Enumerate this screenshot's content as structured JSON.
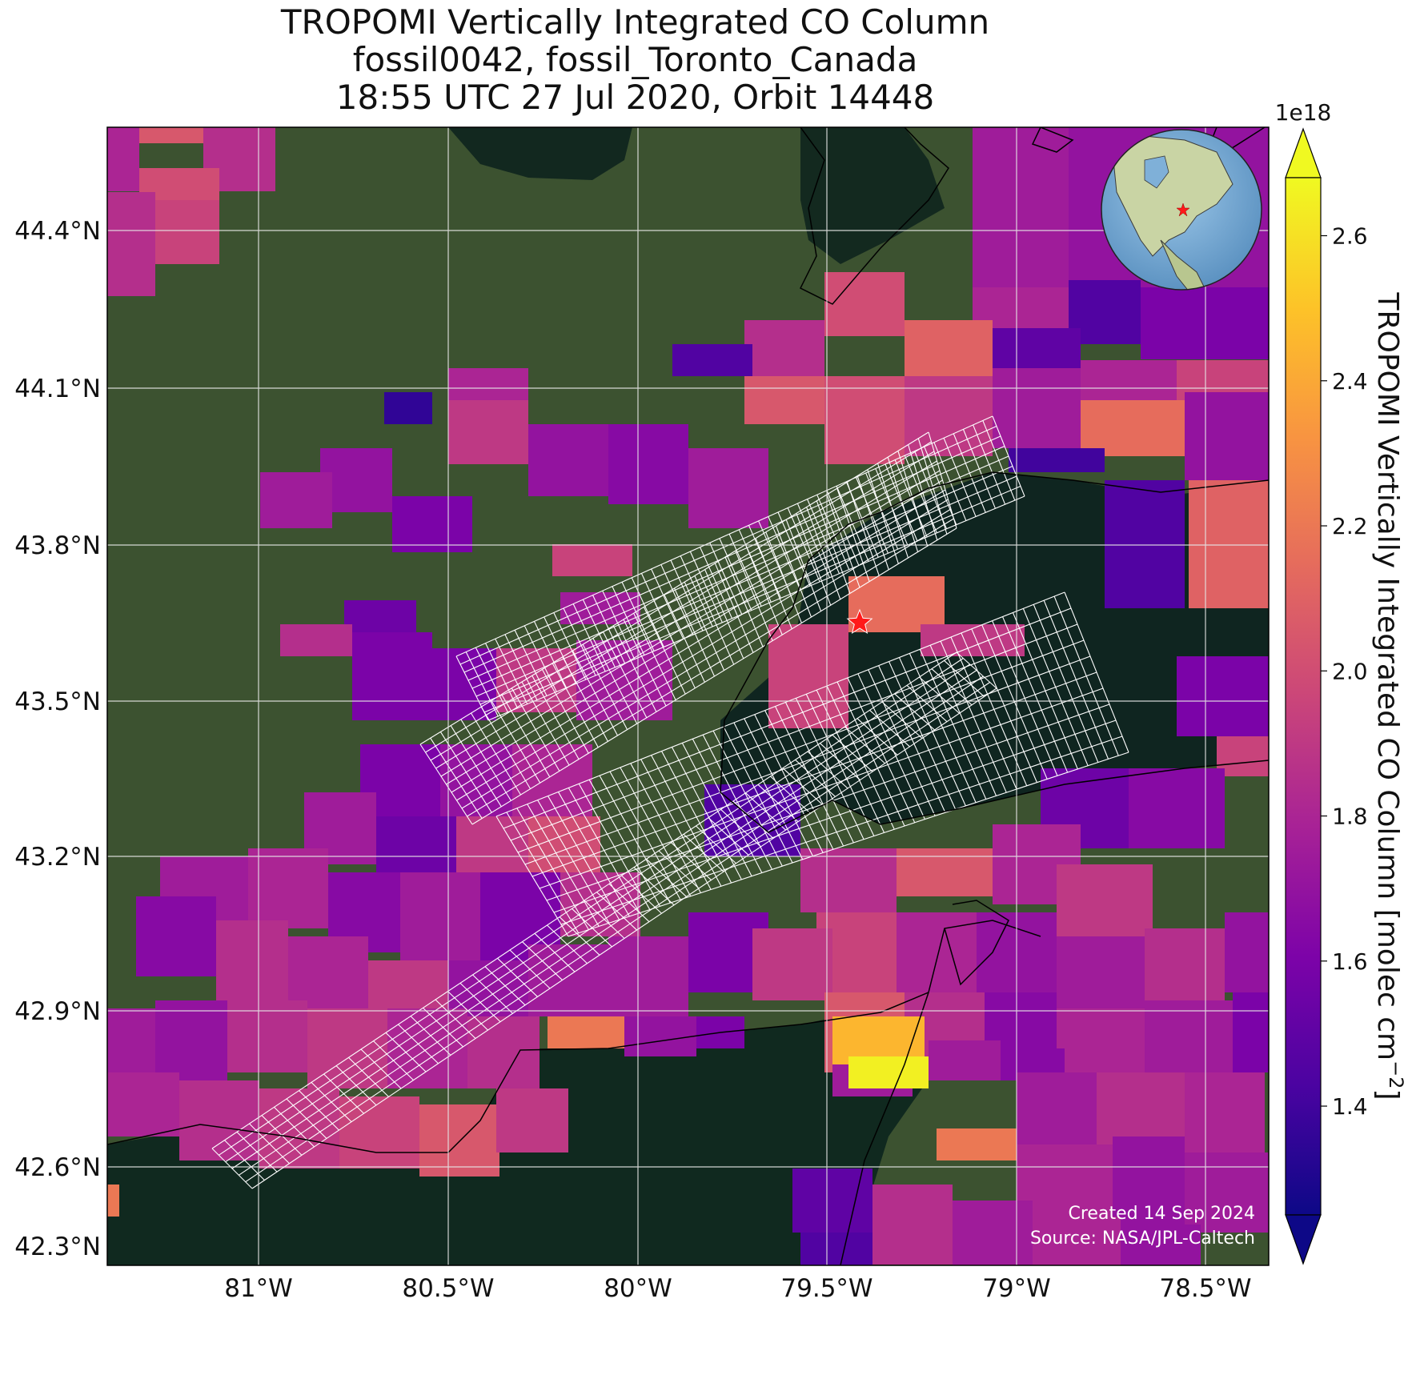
{
  "title": {
    "line1": "TROPOMI Vertically Integrated CO Column",
    "line2": "fossil0042, fossil_Toronto_Canada",
    "line3": "18:55 UTC 27 Jul 2020, Orbit 14448"
  },
  "map": {
    "lat_ticks": [
      "44.4°N",
      "44.1°N",
      "43.8°N",
      "43.5°N",
      "43.2°N",
      "42.9°N",
      "42.6°N",
      "42.3°N"
    ],
    "lon_ticks": [
      "81°W",
      "80.5°W",
      "80°W",
      "79.5°W",
      "79°W",
      "78.5°W"
    ],
    "credit_line1": "Created 14 Sep 2024",
    "credit_line2": "Source: NASA/JPL-Caltech",
    "target_marker": "red-star-icon",
    "inset": "globe-locator-icon"
  },
  "colorbar": {
    "label": "TROPOMI Vertically Integrated CO Column [molec cm",
    "label_sup": "−2",
    "label_end": "]",
    "multiplier": "1e18",
    "ticks": [
      "2.6",
      "2.4",
      "2.2",
      "2.0",
      "1.8",
      "1.6",
      "1.4"
    ],
    "colormap": "plasma",
    "range": [
      1.25,
      2.68
    ]
  },
  "colors": {
    "land": "#3c5230",
    "water": "#0f2520",
    "grid": "#e6e6e6",
    "star": "#ff1a1a"
  }
}
